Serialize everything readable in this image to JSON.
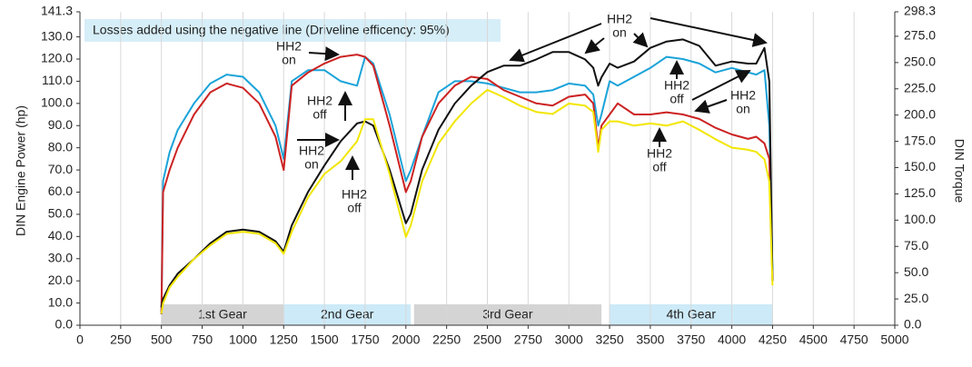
{
  "chart_data": {
    "type": "line",
    "note": "Losses added using the negative line (Driveline efficency: 95%)",
    "ylabel": "DIN Engine Power (hp)",
    "y2label": "DIN Torque",
    "x": [
      500,
      510,
      550,
      600,
      700,
      800,
      900,
      1000,
      1100,
      1200,
      1250,
      1300,
      1400,
      1500,
      1600,
      1700,
      1750,
      1800,
      1900,
      2000,
      2030,
      2100,
      2200,
      2300,
      2400,
      2500,
      2600,
      2700,
      2800,
      2900,
      3000,
      3100,
      3150,
      3180,
      3200,
      3250,
      3300,
      3400,
      3500,
      3600,
      3700,
      3800,
      3900,
      4000,
      4100,
      4150,
      4200,
      4230,
      4250
    ],
    "series": [
      {
        "color": "#1aa3d9",
        "values": [
          5,
          65,
          78,
          88,
          100,
          109,
          113,
          112,
          105,
          90,
          75,
          110,
          115,
          115,
          110,
          108,
          121,
          118,
          95,
          65,
          70,
          85,
          105,
          110,
          110,
          109,
          107,
          105,
          105,
          106,
          109,
          108,
          104,
          90,
          95,
          110,
          108,
          112,
          116,
          121,
          120,
          118,
          114,
          116,
          114,
          113,
          115,
          90,
          25
        ]
      },
      {
        "color": "#cc2222",
        "values": [
          5,
          60,
          70,
          80,
          95,
          105,
          109,
          107,
          100,
          85,
          70,
          108,
          114,
          118,
          121,
          122,
          121,
          117,
          90,
          60,
          65,
          85,
          100,
          108,
          112,
          111,
          106,
          103,
          100,
          99,
          103,
          104,
          100,
          80,
          90,
          95,
          100,
          95,
          95,
          96,
          95,
          93,
          89,
          86,
          84,
          85,
          82,
          75,
          20
        ]
      },
      {
        "color": "#111111",
        "axis": "y2",
        "values": [
          17,
          25,
          38,
          49,
          63,
          78,
          89,
          91,
          89,
          80,
          70,
          95,
          127,
          152,
          175,
          192,
          194,
          190,
          148,
          97,
          106,
          148,
          186,
          211,
          228,
          241,
          247,
          247,
          253,
          260,
          260,
          253,
          245,
          228,
          236,
          249,
          245,
          251,
          264,
          270,
          272,
          266,
          247,
          251,
          249,
          249,
          264,
          232,
          42
        ]
      },
      {
        "color": "#f2e600",
        "axis": "y2",
        "values": [
          11,
          21,
          36,
          46,
          63,
          76,
          87,
          89,
          87,
          78,
          68,
          89,
          122,
          144,
          156,
          175,
          196,
          196,
          144,
          84,
          95,
          137,
          173,
          194,
          211,
          224,
          217,
          209,
          203,
          201,
          211,
          209,
          203,
          165,
          186,
          194,
          194,
          190,
          192,
          190,
          194,
          186,
          177,
          169,
          167,
          165,
          158,
          137,
          38
        ]
      }
    ],
    "gears": [
      {
        "label": "1st Gear",
        "start": 500,
        "end": 1250,
        "color": "#d4d4d4"
      },
      {
        "label": "2nd Gear",
        "start": 1250,
        "end": 2030,
        "color": "#cdeaf8"
      },
      {
        "label": "3rd Gear",
        "start": 2050,
        "end": 3200,
        "color": "#d4d4d4"
      },
      {
        "label": "4th Gear",
        "start": 3250,
        "end": 4250,
        "color": "#cdeaf8"
      }
    ],
    "annotations": [
      {
        "lines": [
          "HH2",
          "on"
        ]
      },
      {
        "lines": [
          "HH2",
          "off"
        ]
      },
      {
        "lines": [
          "HH2",
          "on"
        ]
      },
      {
        "lines": [
          "HH2",
          "off"
        ]
      },
      {
        "lines": [
          "HH2",
          "on"
        ]
      },
      {
        "lines": [
          "HH2",
          "off"
        ]
      },
      {
        "lines": [
          "HH2",
          "on"
        ]
      },
      {
        "lines": [
          "HH2",
          "off"
        ]
      }
    ],
    "xlim": [
      0,
      5000
    ],
    "xticks": [
      0,
      250,
      500,
      750,
      1000,
      1250,
      1500,
      1750,
      2000,
      2250,
      2500,
      2750,
      3000,
      3250,
      3500,
      3750,
      4000,
      4250,
      4500,
      4750,
      5000
    ],
    "ylim": [
      0,
      141.3
    ],
    "yticks": [
      {
        "value": 0,
        "label": "0.0"
      },
      {
        "value": 10,
        "label": "10.0"
      },
      {
        "value": 20,
        "label": "20.0"
      },
      {
        "value": 30,
        "label": "30.0"
      },
      {
        "value": 40,
        "label": "40.0"
      },
      {
        "value": 50,
        "label": "50.0"
      },
      {
        "value": 60,
        "label": "60.0"
      },
      {
        "value": 70,
        "label": "70.0"
      },
      {
        "value": 80,
        "label": "80.0"
      },
      {
        "value": 90,
        "label": "90.0"
      },
      {
        "value": 100,
        "label": "100.0"
      },
      {
        "value": 110,
        "label": "110.0"
      },
      {
        "value": 120,
        "label": "120.0"
      },
      {
        "value": 130,
        "label": "130.0"
      },
      141.3
    ],
    "y2lim": [
      0,
      298.3
    ],
    "y2ticks": [
      {
        "value": 0,
        "label": "0.0"
      },
      {
        "value": 25,
        "label": "25.0"
      },
      {
        "value": 50,
        "label": "50.0"
      },
      {
        "value": 75,
        "label": "75.0"
      },
      {
        "value": 100,
        "label": "100.0"
      },
      {
        "value": 125,
        "label": "125.0"
      },
      {
        "value": 150,
        "label": "150.0"
      },
      {
        "value": 175,
        "label": "175.0"
      },
      {
        "value": 200,
        "label": "200.0"
      },
      {
        "value": 225,
        "label": "225.0"
      },
      {
        "value": 250,
        "label": "250.0"
      },
      {
        "value": 275,
        "label": "275.0"
      },
      298.3
    ],
    "grid": true
  }
}
